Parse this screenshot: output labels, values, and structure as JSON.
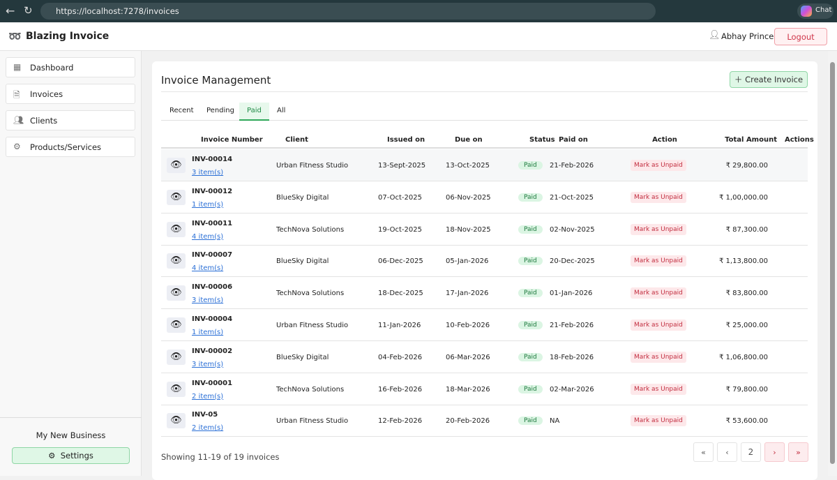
{
  "browser": {
    "url": "https://localhost:7278/invoices",
    "chat": "Chat"
  },
  "header": {
    "title": "Blazing Invoice",
    "user": "Abhay Prince",
    "logout": "Logout"
  },
  "sidebar": {
    "nav": [
      "Dashboard",
      "Invoices",
      "Clients",
      "Products/Services"
    ],
    "business": "My New Business",
    "settings": "Settings"
  },
  "main": {
    "title": "Invoice Management",
    "create": "Create Invoice",
    "tabs": [
      "Recent",
      "Pending",
      "Paid",
      "All"
    ],
    "active_tab": 2,
    "table": {
      "columns": [
        "Invoice Number",
        "Client",
        "Issued on",
        "Due on",
        "Status",
        "Paid on",
        "Action",
        "Total Amount",
        "Actions"
      ],
      "rows": [
        {
          "number": "INV-00014",
          "items": "3 item(s)",
          "client": "Urban Fitness Studio",
          "issued": "13-Sept-2025",
          "due": "13-Oct-2025",
          "status": "Paid",
          "paid_on": "21-Feb-2026",
          "action": "Mark as Unpaid",
          "total": "₹ 29,800.00"
        },
        {
          "number": "INV-00012",
          "items": "1 item(s)",
          "client": "BlueSky Digital",
          "issued": "07-Oct-2025",
          "due": "06-Nov-2025",
          "status": "Paid",
          "paid_on": "21-Oct-2025",
          "action": "Mark as Unpaid",
          "total": "₹ 1,00,000.00"
        },
        {
          "number": "INV-00011",
          "items": "4 item(s)",
          "client": "TechNova Solutions",
          "issued": "19-Oct-2025",
          "due": "18-Nov-2025",
          "status": "Paid",
          "paid_on": "02-Nov-2025",
          "action": "Mark as Unpaid",
          "total": "₹ 87,300.00"
        },
        {
          "number": "INV-00007",
          "items": "4 item(s)",
          "client": "BlueSky Digital",
          "issued": "06-Dec-2025",
          "due": "05-Jan-2026",
          "status": "Paid",
          "paid_on": "20-Dec-2025",
          "action": "Mark as Unpaid",
          "total": "₹ 1,13,800.00"
        },
        {
          "number": "INV-00006",
          "items": "3 item(s)",
          "client": "TechNova Solutions",
          "issued": "18-Dec-2025",
          "due": "17-Jan-2026",
          "status": "Paid",
          "paid_on": "01-Jan-2026",
          "action": "Mark as Unpaid",
          "total": "₹ 83,800.00"
        },
        {
          "number": "INV-00004",
          "items": "1 item(s)",
          "client": "Urban Fitness Studio",
          "issued": "11-Jan-2026",
          "due": "10-Feb-2026",
          "status": "Paid",
          "paid_on": "21-Feb-2026",
          "action": "Mark as Unpaid",
          "total": "₹ 25,000.00"
        },
        {
          "number": "INV-00002",
          "items": "3 item(s)",
          "client": "BlueSky Digital",
          "issued": "04-Feb-2026",
          "due": "06-Mar-2026",
          "status": "Paid",
          "paid_on": "18-Feb-2026",
          "action": "Mark as Unpaid",
          "total": "₹ 1,06,800.00"
        },
        {
          "number": "INV-00001",
          "items": "2 item(s)",
          "client": "TechNova Solutions",
          "issued": "16-Feb-2026",
          "due": "18-Mar-2026",
          "status": "Paid",
          "paid_on": "02-Mar-2026",
          "action": "Mark as Unpaid",
          "total": "₹ 79,800.00"
        },
        {
          "number": "INV-05",
          "items": "2 item(s)",
          "client": "Urban Fitness Studio",
          "issued": "12-Feb-2026",
          "due": "20-Feb-2026",
          "status": "Paid",
          "paid_on": "NA",
          "action": "Mark as Unpaid",
          "total": "₹ 53,600.00"
        }
      ]
    },
    "showing": "Showing 11-19 of 19 invoices",
    "pager": [
      "«",
      "‹",
      "2",
      "›",
      "»"
    ]
  }
}
